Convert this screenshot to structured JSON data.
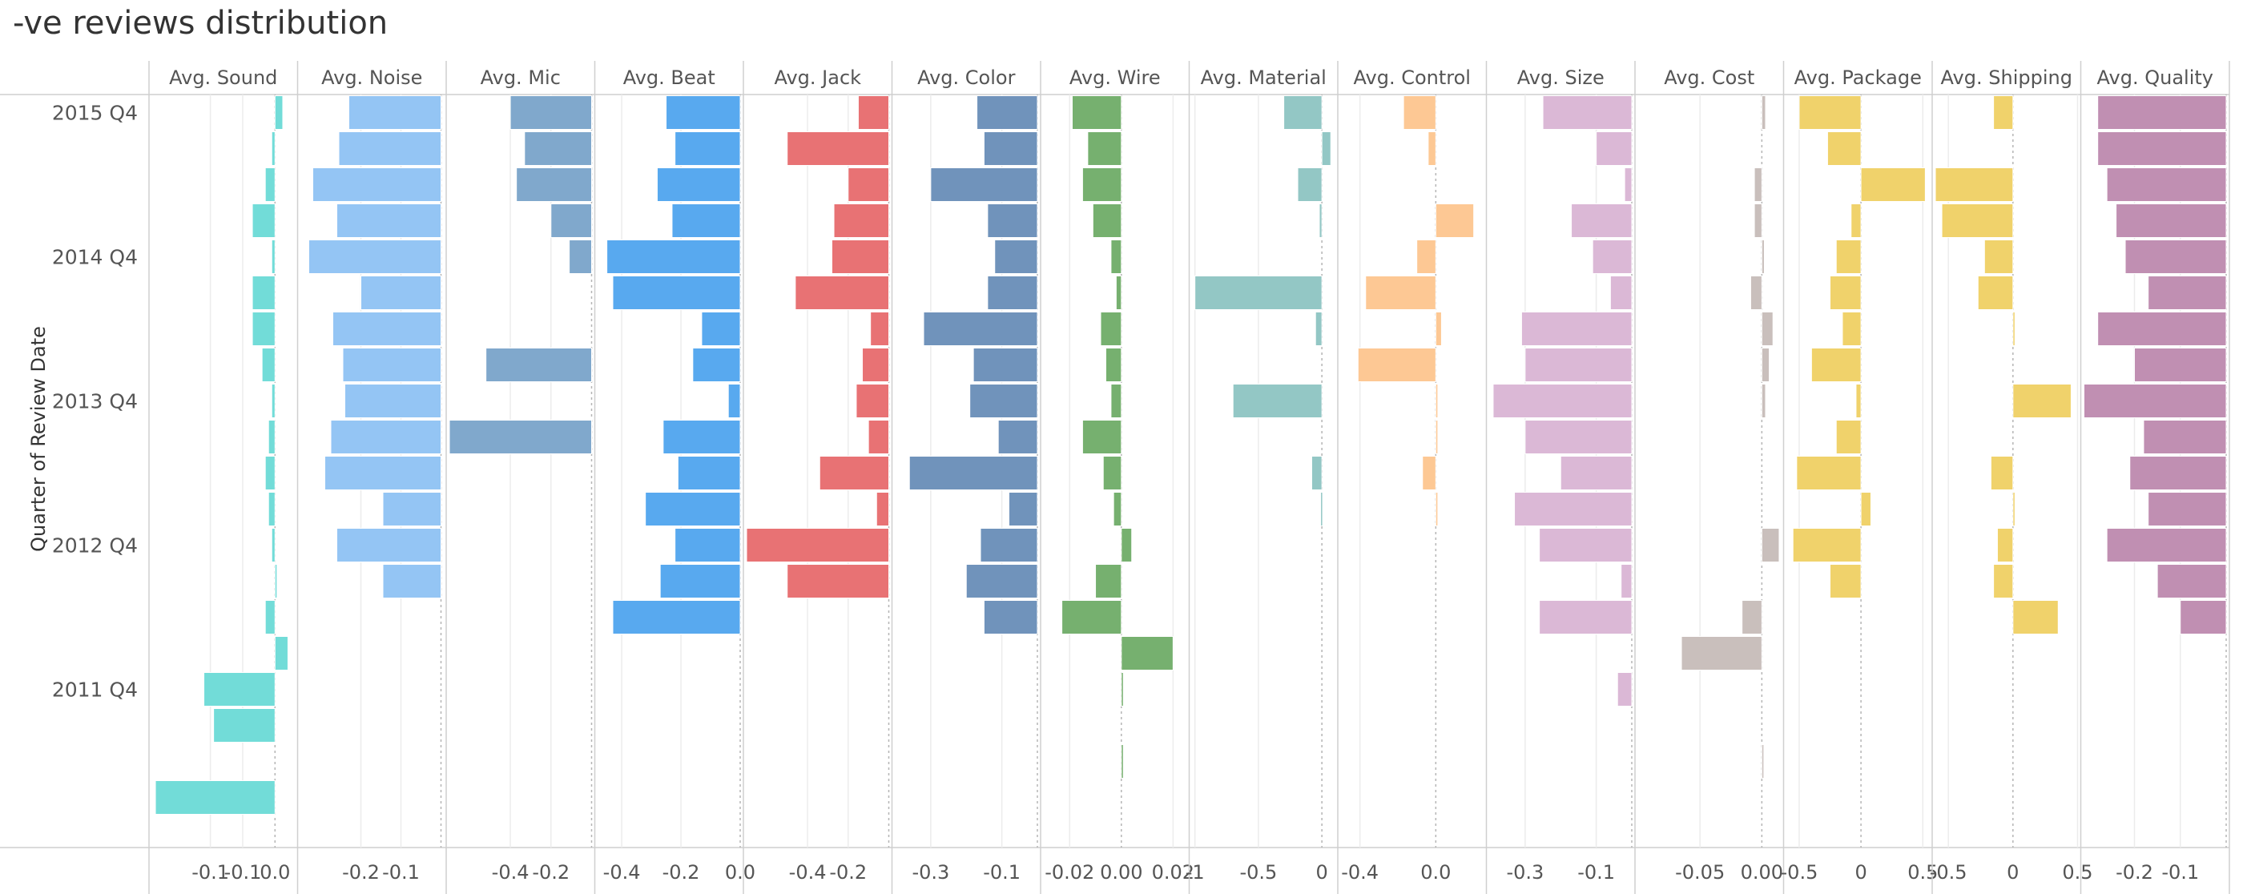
{
  "title": "-ve reviews distribution",
  "chart_data": {
    "type": "bar",
    "orientation": "horizontal",
    "title": "-ve reviews distribution",
    "ylabel": "Quarter of Review Date",
    "row_labels": [
      "2015 Q4",
      "",
      "",
      "",
      "2014 Q4",
      "",
      "",
      "",
      "2013 Q4",
      "",
      "",
      "",
      "2012 Q4",
      "",
      "",
      "",
      "2011 Q4",
      "",
      "",
      ""
    ],
    "grid": true,
    "panels": [
      {
        "name": "Avg. Sound",
        "color": "#72dcd8",
        "xlim": [
          -0.19,
          0.03
        ],
        "ticks": [
          {
            "v": -0.1,
            "label": "-0.1"
          },
          {
            "v": -0.05,
            "label": "-0.1"
          },
          {
            "v": 0,
            "label": "0.0"
          }
        ],
        "values": [
          0.012,
          -0.005,
          -0.015,
          -0.035,
          -0.005,
          -0.035,
          -0.035,
          -0.02,
          -0.005,
          -0.01,
          -0.015,
          -0.01,
          -0.005,
          0.002,
          -0.015,
          0.02,
          -0.11,
          -0.095,
          null,
          -0.185
        ]
      },
      {
        "name": "Avg. Noise",
        "color": "#94c5f4",
        "xlim": [
          -0.35,
          0.005
        ],
        "ticks": [
          {
            "v": -0.2,
            "label": "-0.2"
          },
          {
            "v": -0.1,
            "label": "-0.1"
          }
        ],
        "values": [
          -0.23,
          -0.255,
          -0.32,
          -0.26,
          -0.33,
          -0.2,
          -0.27,
          -0.245,
          -0.24,
          -0.275,
          -0.29,
          -0.145,
          -0.26,
          -0.145,
          null,
          null,
          null,
          null,
          null,
          null
        ]
      },
      {
        "name": "Avg. Mic",
        "color": "#80a8cc",
        "xlim": [
          -0.7,
          0.0
        ],
        "ticks": [
          {
            "v": -0.4,
            "label": "-0.4"
          },
          {
            "v": -0.2,
            "label": "-0.2"
          }
        ],
        "values": [
          -0.4,
          -0.33,
          -0.37,
          -0.2,
          -0.11,
          null,
          null,
          -0.52,
          null,
          -0.7,
          null,
          null,
          null,
          null,
          null,
          null,
          null,
          null,
          null,
          null
        ]
      },
      {
        "name": "Avg. Beat",
        "color": "#58a9ef",
        "xlim": [
          -0.48,
          0.0
        ],
        "ticks": [
          {
            "v": -0.4,
            "label": "-0.4"
          },
          {
            "v": -0.2,
            "label": "-0.2"
          },
          {
            "v": 0,
            "label": "0.0"
          }
        ],
        "values": [
          -0.25,
          -0.22,
          -0.28,
          -0.23,
          -0.45,
          -0.43,
          -0.13,
          -0.16,
          -0.04,
          -0.26,
          -0.21,
          -0.32,
          -0.22,
          -0.27,
          -0.43,
          null,
          null,
          null,
          null,
          null
        ]
      },
      {
        "name": "Avg. Jack",
        "color": "#e87274",
        "xlim": [
          -0.7,
          0.0
        ],
        "ticks": [
          {
            "v": -0.4,
            "label": "-0.4"
          },
          {
            "v": -0.2,
            "label": "-0.2"
          }
        ],
        "values": [
          -0.15,
          -0.5,
          -0.2,
          -0.27,
          -0.28,
          -0.46,
          -0.09,
          -0.13,
          -0.16,
          -0.1,
          -0.34,
          -0.06,
          -0.7,
          -0.5,
          null,
          null,
          null,
          null,
          null,
          null
        ]
      },
      {
        "name": "Avg. Color",
        "color": "#7093bb",
        "xlim": [
          -0.4,
          0.0
        ],
        "ticks": [
          {
            "v": -0.3,
            "label": "-0.3"
          },
          {
            "v": -0.1,
            "label": "-0.1"
          }
        ],
        "values": [
          -0.17,
          -0.15,
          -0.3,
          -0.14,
          -0.12,
          -0.14,
          -0.32,
          -0.18,
          -0.19,
          -0.11,
          -0.36,
          -0.08,
          -0.16,
          -0.2,
          -0.15,
          null,
          null,
          null,
          null,
          null
        ]
      },
      {
        "name": "Avg. Wire",
        "color": "#76b06f",
        "xlim": [
          -0.03,
          0.025
        ],
        "ticks": [
          {
            "v": -0.02,
            "label": "-0.02"
          },
          {
            "v": 0,
            "label": "0.00"
          },
          {
            "v": 0.02,
            "label": "0.02"
          }
        ],
        "values": [
          -0.019,
          -0.013,
          -0.015,
          -0.011,
          -0.004,
          -0.002,
          -0.008,
          -0.006,
          -0.004,
          -0.015,
          -0.007,
          -0.003,
          0.004,
          -0.01,
          -0.023,
          0.02,
          0.0005,
          null,
          0.0005,
          null
        ]
      },
      {
        "name": "Avg. Material",
        "color": "#93c7c5",
        "xlim": [
          -1.02,
          0.1
        ],
        "ticks": [
          {
            "v": -1,
            "label": "-1"
          },
          {
            "v": -0.5,
            "label": "-0.5"
          },
          {
            "v": 0,
            "label": "0"
          }
        ],
        "values": [
          -0.3,
          0.07,
          -0.19,
          -0.02,
          null,
          -1.0,
          -0.05,
          null,
          -0.7,
          null,
          -0.08,
          -0.01,
          null,
          null,
          null,
          null,
          null,
          null,
          null,
          null
        ]
      },
      {
        "name": "Avg. Control",
        "color": "#fdc894",
        "xlim": [
          -0.5,
          0.25
        ],
        "ticks": [
          {
            "v": -0.4,
            "label": "-0.4"
          },
          {
            "v": 0,
            "label": "0.0"
          }
        ],
        "values": [
          -0.17,
          -0.04,
          null,
          0.2,
          -0.1,
          -0.37,
          0.03,
          -0.41,
          0.005,
          0.005,
          -0.07,
          0.005,
          null,
          null,
          null,
          null,
          null,
          null,
          null,
          null
        ]
      },
      {
        "name": "Avg. Size",
        "color": "#dbb8d6",
        "xlim": [
          -0.4,
          0.0
        ],
        "ticks": [
          {
            "v": -0.3,
            "label": "-0.3"
          },
          {
            "v": -0.1,
            "label": "-0.1"
          }
        ],
        "values": [
          -0.25,
          -0.1,
          -0.02,
          -0.17,
          -0.11,
          -0.06,
          -0.31,
          -0.3,
          -0.39,
          -0.3,
          -0.2,
          -0.33,
          -0.26,
          -0.03,
          -0.26,
          null,
          -0.04,
          null,
          null,
          null
        ]
      },
      {
        "name": "Avg. Cost",
        "color": "#c9bfbc",
        "xlim": [
          -0.1,
          0.015
        ],
        "ticks": [
          {
            "v": -0.05,
            "label": "-0.05"
          },
          {
            "v": 0,
            "label": "0.00"
          }
        ],
        "values": [
          0.003,
          null,
          -0.006,
          -0.006,
          0.002,
          -0.009,
          0.009,
          0.006,
          0.003,
          null,
          null,
          null,
          0.014,
          null,
          -0.016,
          -0.065,
          null,
          null,
          0.001,
          null
        ]
      },
      {
        "name": "Avg. Package",
        "color": "#f0d26b",
        "xlim": [
          -0.6,
          0.55
        ],
        "ticks": [
          {
            "v": -0.5,
            "label": "-0.5"
          },
          {
            "v": 0,
            "label": "0"
          },
          {
            "v": 0.5,
            "label": "0.5"
          }
        ],
        "values": [
          -0.5,
          -0.27,
          0.52,
          -0.08,
          -0.2,
          -0.25,
          -0.15,
          -0.4,
          -0.04,
          -0.2,
          -0.52,
          0.08,
          -0.55,
          -0.25,
          null,
          null,
          null,
          null,
          null,
          null
        ]
      },
      {
        "name": "Avg. Shipping",
        "color": "#f0d26b",
        "xlim": [
          -0.6,
          0.5
        ],
        "ticks": [
          {
            "v": -0.5,
            "label": "-0.5"
          },
          {
            "v": 0,
            "label": "0"
          },
          {
            "v": 0.5,
            "label": "0.5"
          }
        ],
        "values": [
          -0.15,
          null,
          -0.6,
          -0.55,
          -0.22,
          -0.27,
          0.01,
          null,
          0.45,
          null,
          -0.17,
          0.01,
          -0.12,
          -0.15,
          0.35,
          null,
          null,
          null,
          null,
          null
        ]
      },
      {
        "name": "Avg. Quality",
        "color": "#c08fb2",
        "xlim": [
          -0.31,
          0.0
        ],
        "ticks": [
          {
            "v": -0.2,
            "label": "-0.2"
          },
          {
            "v": -0.1,
            "label": "-0.1"
          }
        ],
        "values": [
          -0.28,
          -0.28,
          -0.26,
          -0.24,
          -0.22,
          -0.17,
          -0.28,
          -0.2,
          -0.31,
          -0.18,
          -0.21,
          -0.17,
          -0.26,
          -0.15,
          -0.1,
          null,
          null,
          null,
          null,
          null
        ]
      }
    ]
  }
}
